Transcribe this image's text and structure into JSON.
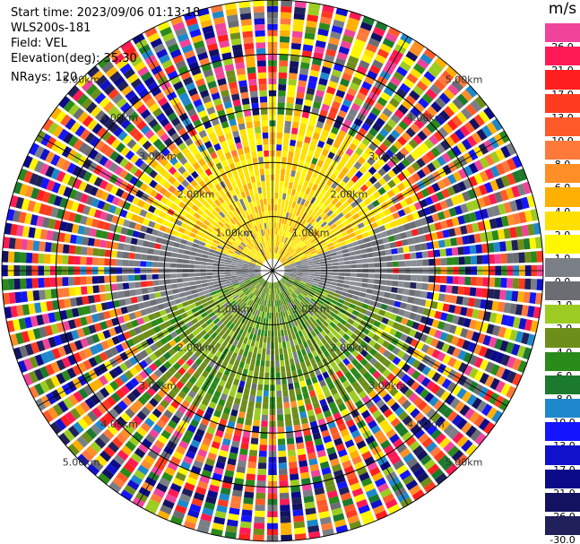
{
  "header": {
    "start_time": "Start time: 2023/09/06 01:13:18",
    "site": "WLS200s-181",
    "field": "Field: VEL",
    "elevation": "Elevation(deg): 35.30",
    "nrays": "NRays: 120"
  },
  "colorbar": {
    "unit": "m/s",
    "labels": [
      "26.0",
      "21.0",
      "17.0",
      "13.0",
      "10.0",
      "8.0",
      "6.0",
      "4.0",
      "2.0",
      "1.0",
      "0.0",
      "-1.0",
      "-2.0",
      "-4.0",
      "-6.0",
      "-8.0",
      "-10.0",
      "-13.0",
      "-17.0",
      "-21.0",
      "-26.0",
      "-30.0"
    ],
    "colors": [
      "#f0449a",
      "#ff1a56",
      "#ff1f1f",
      "#ff3b1f",
      "#ff5a2a",
      "#ff7a3a",
      "#ff8f26",
      "#ffb000",
      "#ffe000",
      "#fff700",
      "#7a7f86",
      "#6b6d73",
      "#9ccc22",
      "#6e8e1a",
      "#2a8a1a",
      "#1b7a2d",
      "#1e88cc",
      "#1414ff",
      "#1111cc",
      "#0b0b8a",
      "#121260",
      "#20205a"
    ]
  },
  "range_rings": {
    "labels": [
      "1.00km",
      "2.00km",
      "3.00km",
      "4.00km",
      "5.00km"
    ]
  },
  "chart_data": {
    "type": "heatmap",
    "projection": "polar PPI (azimuth vs range)",
    "field": "VEL",
    "units": "m/s",
    "rays": 120,
    "range_rings_km": [
      1.0,
      2.0,
      3.0,
      4.0,
      5.0
    ],
    "max_range_km": 5.0,
    "color_scale_m_s": [
      26.0,
      21.0,
      17.0,
      13.0,
      10.0,
      8.0,
      6.0,
      4.0,
      2.0,
      1.0,
      0.0,
      -1.0,
      -2.0,
      -4.0,
      -6.0,
      -8.0,
      -10.0,
      -13.0,
      -17.0,
      -21.0,
      -26.0,
      -30.0
    ],
    "pattern": {
      "near_range_north_sector": "positive ~2 to 4 m/s (yellow)",
      "near_range_south_sector": "negative ~-2 to -6 m/s (green)",
      "near_range_east_west": "near 0 m/s (gray)",
      "beyond_about_3km": "noisy, all bins"
    }
  }
}
